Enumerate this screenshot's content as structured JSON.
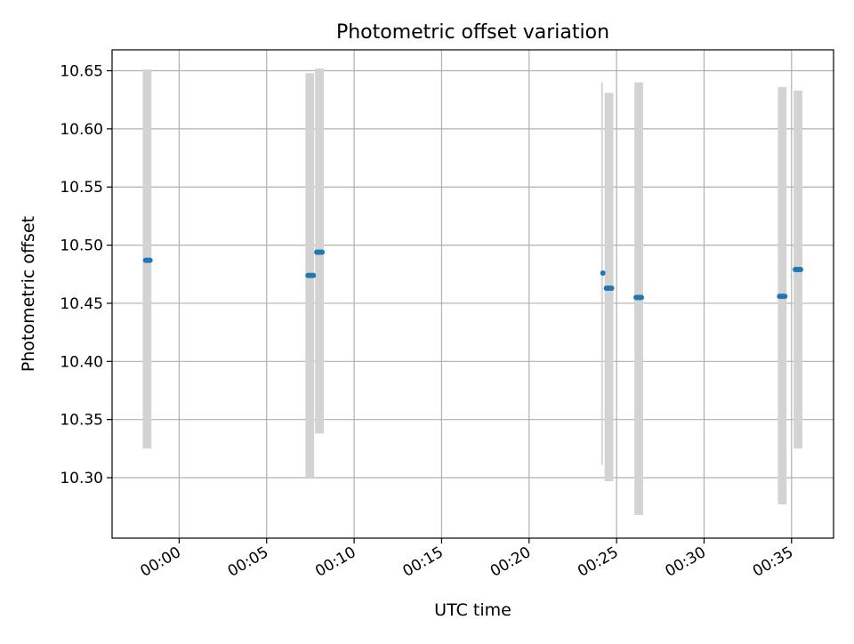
{
  "chart_data": {
    "type": "scatter",
    "title": "Photometric offset variation",
    "xlabel": "UTC time",
    "ylabel": "Photometric offset",
    "xlim": [
      "23:56:10",
      "00:37:24"
    ],
    "ylim": [
      10.248,
      10.668
    ],
    "x_ticks": [
      "00:00",
      "00:05",
      "00:10",
      "00:15",
      "00:20",
      "00:25",
      "00:30",
      "00:35"
    ],
    "y_ticks": [
      "10.30",
      "10.35",
      "10.40",
      "10.45",
      "10.50",
      "10.55",
      "10.60",
      "10.65"
    ],
    "grid": true,
    "colors": {
      "points": "#1f77b4",
      "ranges": "#d3d3d3",
      "grid": "#b0b0b0"
    },
    "points": [
      {
        "x": "23:58:05",
        "y": 10.487
      },
      {
        "x": "23:58:10",
        "y": 10.487
      },
      {
        "x": "23:58:15",
        "y": 10.487
      },
      {
        "x": "23:58:20",
        "y": 10.487
      },
      {
        "x": "00:07:22",
        "y": 10.474
      },
      {
        "x": "00:07:28",
        "y": 10.474
      },
      {
        "x": "00:07:34",
        "y": 10.474
      },
      {
        "x": "00:07:40",
        "y": 10.474
      },
      {
        "x": "00:07:52",
        "y": 10.494
      },
      {
        "x": "00:07:58",
        "y": 10.494
      },
      {
        "x": "00:08:04",
        "y": 10.494
      },
      {
        "x": "00:08:10",
        "y": 10.494
      },
      {
        "x": "00:24:13",
        "y": 10.476
      },
      {
        "x": "00:24:25",
        "y": 10.463
      },
      {
        "x": "00:24:31",
        "y": 10.463
      },
      {
        "x": "00:24:37",
        "y": 10.463
      },
      {
        "x": "00:24:43",
        "y": 10.463
      },
      {
        "x": "00:26:07",
        "y": 10.455
      },
      {
        "x": "00:26:13",
        "y": 10.455
      },
      {
        "x": "00:26:19",
        "y": 10.455
      },
      {
        "x": "00:26:25",
        "y": 10.455
      },
      {
        "x": "00:34:19",
        "y": 10.456
      },
      {
        "x": "00:34:25",
        "y": 10.456
      },
      {
        "x": "00:34:31",
        "y": 10.456
      },
      {
        "x": "00:34:37",
        "y": 10.456
      },
      {
        "x": "00:35:13",
        "y": 10.479
      },
      {
        "x": "00:35:19",
        "y": 10.479
      },
      {
        "x": "00:35:25",
        "y": 10.479
      },
      {
        "x": "00:35:31",
        "y": 10.479
      }
    ],
    "ranges": [
      {
        "x_start": "23:57:55",
        "x_end": "23:58:25",
        "y_low": 10.325,
        "y_high": 10.651
      },
      {
        "x_start": "00:07:13",
        "x_end": "00:07:43",
        "y_low": 10.3,
        "y_high": 10.648
      },
      {
        "x_start": "00:07:46",
        "x_end": "00:08:16",
        "y_low": 10.338,
        "y_high": 10.652
      },
      {
        "x_start": "00:24:07",
        "x_end": "00:24:13",
        "y_low": 10.311,
        "y_high": 10.64
      },
      {
        "x_start": "00:24:19",
        "x_end": "00:24:49",
        "y_low": 10.297,
        "y_high": 10.631
      },
      {
        "x_start": "00:26:01",
        "x_end": "00:26:31",
        "y_low": 10.268,
        "y_high": 10.64
      },
      {
        "x_start": "00:34:13",
        "x_end": "00:34:43",
        "y_low": 10.277,
        "y_high": 10.636
      },
      {
        "x_start": "00:35:07",
        "x_end": "00:35:37",
        "y_low": 10.325,
        "y_high": 10.633
      }
    ]
  }
}
